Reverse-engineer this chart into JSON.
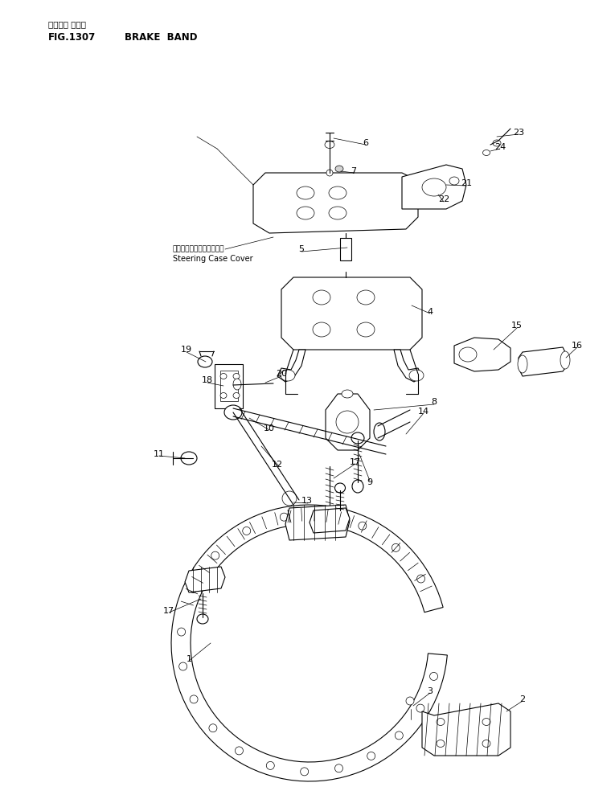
{
  "fig_number": "FIG.1307",
  "title_jp": "ブレーキ バンド",
  "title_en": "BRAKE  BAND",
  "label_jp": "ステアリングケースカバー",
  "label_en": "Steering Case Cover",
  "bg_color": "#ffffff",
  "line_color": "#000000",
  "figsize": [
    7.65,
    9.89
  ],
  "dpi": 100
}
